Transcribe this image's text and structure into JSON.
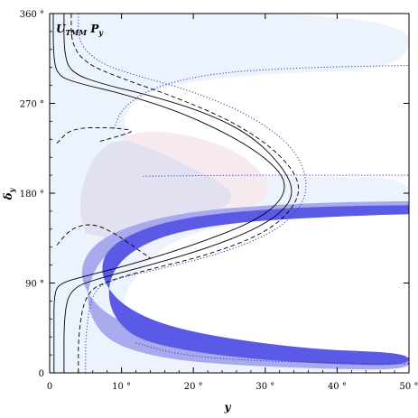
{
  "chart_data": {
    "type": "contour",
    "label": {
      "main": "U",
      "sub": "TMM",
      "tail": " P",
      "tail_sub": "y"
    },
    "xlabel": "y",
    "ylabel": {
      "main": "δ",
      "sub": "y"
    },
    "xlim": [
      0,
      50
    ],
    "ylim": [
      0,
      360
    ],
    "xticks": [
      {
        "value": 0,
        "label": "0"
      },
      {
        "value": 10,
        "label": "10 °"
      },
      {
        "value": 20,
        "label": "20 °"
      },
      {
        "value": 30,
        "label": "30 °"
      },
      {
        "value": 40,
        "label": "40 °"
      },
      {
        "value": 50,
        "label": "50 °"
      }
    ],
    "yticks": [
      {
        "value": 0,
        "label": "0"
      },
      {
        "value": 90,
        "label": "90 °"
      },
      {
        "value": 180,
        "label": "180 °"
      },
      {
        "value": 270,
        "label": "270 °"
      },
      {
        "value": 360,
        "label": "360 °"
      }
    ],
    "colors": {
      "light_blue_fill": "#edf3fc",
      "pink_fill": "#f6eaf0",
      "grey_purple_fill": "#e1e1f2",
      "band_outer": "#a9a9ee",
      "band_inner": "#5a5ae6",
      "line": "#000000",
      "dotted_blue": "#3a3ab0"
    },
    "regions": [
      {
        "name": "outer-3sigma-region",
        "color": "light_blue_fill",
        "points": [
          [
            0,
            0
          ],
          [
            50,
            0
          ],
          [
            50,
            14
          ],
          [
            38,
            15
          ],
          [
            25,
            17
          ],
          [
            15,
            22
          ],
          [
            11,
            35
          ],
          [
            10,
            60
          ],
          [
            11,
            90
          ],
          [
            16,
            130
          ],
          [
            25,
            150
          ],
          [
            38,
            158
          ],
          [
            50,
            162
          ],
          [
            50,
            196
          ],
          [
            38,
            196
          ],
          [
            25,
            198
          ],
          [
            15,
            215
          ],
          [
            10,
            240
          ],
          [
            11,
            270
          ],
          [
            17,
            290
          ],
          [
            30,
            300
          ],
          [
            50,
            304
          ],
          [
            50,
            360
          ],
          [
            0,
            360
          ]
        ]
      },
      {
        "name": "pink-central-region",
        "color": "pink_fill",
        "points": [
          [
            6,
            160
          ],
          [
            7,
            200
          ],
          [
            10,
            237
          ],
          [
            14,
            243
          ],
          [
            20,
            238
          ],
          [
            26,
            222
          ],
          [
            29,
            205
          ],
          [
            31,
            185
          ],
          [
            29,
            168
          ],
          [
            24,
            150
          ],
          [
            17,
            138
          ],
          [
            10,
            140
          ]
        ]
      },
      {
        "name": "grey-overlap-region",
        "color": "grey_purple_fill",
        "points": [
          [
            5,
            140
          ],
          [
            4,
            165
          ],
          [
            5,
            200
          ],
          [
            7,
            225
          ],
          [
            10,
            235
          ],
          [
            14,
            225
          ],
          [
            20,
            205
          ],
          [
            24,
            190
          ],
          [
            26,
            175
          ],
          [
            22,
            155
          ],
          [
            14,
            140
          ],
          [
            8,
            135
          ]
        ]
      },
      {
        "name": "outer-band",
        "color": "band_outer",
        "points": [
          [
            50,
            172
          ],
          [
            40,
            171
          ],
          [
            30,
            168
          ],
          [
            20,
            162
          ],
          [
            12,
            150
          ],
          [
            6,
            130
          ],
          [
            4,
            100
          ],
          [
            6,
            70
          ],
          [
            10,
            50
          ],
          [
            16,
            36
          ],
          [
            25,
            26
          ],
          [
            38,
            18
          ],
          [
            50,
            16
          ],
          [
            50,
            3
          ],
          [
            38,
            4
          ],
          [
            25,
            8
          ],
          [
            16,
            14
          ],
          [
            9,
            28
          ],
          [
            6,
            50
          ],
          [
            5,
            80
          ],
          [
            7,
            115
          ],
          [
            12,
            140
          ],
          [
            20,
            152
          ],
          [
            30,
            158
          ],
          [
            40,
            161
          ],
          [
            50,
            162
          ]
        ]
      },
      {
        "name": "inner-band",
        "color": "band_inner",
        "points": [
          [
            50,
            168
          ],
          [
            40,
            167
          ],
          [
            30,
            164
          ],
          [
            20,
            157
          ],
          [
            13,
            145
          ],
          [
            8,
            125
          ],
          [
            7,
            100
          ],
          [
            9,
            75
          ],
          [
            13,
            56
          ],
          [
            19,
            42
          ],
          [
            28,
            31
          ],
          [
            38,
            23
          ],
          [
            50,
            20
          ],
          [
            50,
            7
          ],
          [
            38,
            9
          ],
          [
            28,
            14
          ],
          [
            19,
            22
          ],
          [
            12,
            34
          ],
          [
            9,
            55
          ],
          [
            8,
            80
          ],
          [
            9,
            105
          ],
          [
            12,
            125
          ],
          [
            17,
            140
          ],
          [
            25,
            150
          ],
          [
            35,
            155
          ],
          [
            45,
            158
          ],
          [
            50,
            159
          ]
        ]
      }
    ],
    "curves": [
      {
        "name": "solid-curve-outer",
        "style": "solid",
        "points": [
          [
            0.5,
            360
          ],
          [
            0.5,
            320
          ],
          [
            1,
            298
          ],
          [
            4,
            290
          ],
          [
            10,
            280
          ],
          [
            18,
            262
          ],
          [
            26,
            235
          ],
          [
            31,
            210
          ],
          [
            33,
            190
          ],
          [
            32,
            170
          ],
          [
            28,
            150
          ],
          [
            20,
            128
          ],
          [
            12,
            110
          ],
          [
            5,
            97
          ],
          [
            1.5,
            90
          ],
          [
            0.6,
            80
          ],
          [
            0.6,
            40
          ],
          [
            0.6,
            0
          ]
        ]
      },
      {
        "name": "solid-curve-inner",
        "style": "solid",
        "points": [
          [
            2,
            360
          ],
          [
            2,
            320
          ],
          [
            3,
            300
          ],
          [
            8,
            288
          ],
          [
            14,
            278
          ],
          [
            22,
            260
          ],
          [
            28,
            238
          ],
          [
            32,
            210
          ],
          [
            34,
            185
          ],
          [
            33,
            165
          ],
          [
            29,
            145
          ],
          [
            22,
            125
          ],
          [
            14,
            108
          ],
          [
            7,
            95
          ],
          [
            3,
            85
          ],
          [
            2,
            60
          ],
          [
            2,
            0
          ]
        ]
      },
      {
        "name": "dashed-curve-outer",
        "style": "dashed",
        "points": [
          [
            3,
            360
          ],
          [
            3,
            330
          ],
          [
            5,
            310
          ],
          [
            10,
            295
          ],
          [
            18,
            275
          ],
          [
            26,
            250
          ],
          [
            32,
            220
          ],
          [
            35,
            190
          ],
          [
            34,
            165
          ],
          [
            30,
            140
          ],
          [
            22,
            118
          ],
          [
            14,
            104
          ],
          [
            8,
            92
          ],
          [
            5,
            80
          ],
          [
            4,
            40
          ],
          [
            4,
            0
          ]
        ]
      },
      {
        "name": "dashed-curve-pocket",
        "style": "dashed",
        "points": [
          [
            1,
            230
          ],
          [
            3,
            245
          ],
          [
            8,
            246
          ],
          [
            12,
            243
          ],
          [
            10,
            238
          ],
          [
            7,
            232
          ]
        ]
      },
      {
        "name": "dashed-curve-lower",
        "style": "dashed",
        "points": [
          [
            1,
            128
          ],
          [
            3,
            145
          ],
          [
            6,
            150
          ],
          [
            9,
            140
          ],
          [
            11,
            130
          ],
          [
            14,
            115
          ]
        ]
      },
      {
        "name": "dotted-curve-upper",
        "style": "dotted",
        "points": [
          [
            9,
            245
          ],
          [
            10,
            265
          ],
          [
            14,
            285
          ],
          [
            22,
            300
          ],
          [
            35,
            306
          ],
          [
            50,
            308
          ]
        ]
      },
      {
        "name": "dotted-curve-mid",
        "style": "dotted",
        "points": [
          [
            13,
            197
          ],
          [
            25,
            198
          ],
          [
            38,
            198
          ],
          [
            50,
            198
          ]
        ]
      },
      {
        "name": "dotted-curve-lower",
        "style": "dotted",
        "points": [
          [
            12,
            30
          ],
          [
            18,
            18
          ],
          [
            28,
            12
          ],
          [
            40,
            10
          ],
          [
            50,
            9
          ]
        ]
      },
      {
        "name": "dotted-curve-inner",
        "style": "dotted",
        "points": [
          [
            4,
            360
          ],
          [
            4,
            330
          ],
          [
            7,
            310
          ],
          [
            12,
            298
          ],
          [
            20,
            282
          ],
          [
            28,
            258
          ],
          [
            34,
            226
          ],
          [
            36,
            192
          ],
          [
            35,
            165
          ],
          [
            31,
            140
          ],
          [
            24,
            120
          ],
          [
            16,
            105
          ],
          [
            10,
            96
          ],
          [
            6,
            85
          ],
          [
            5,
            40
          ],
          [
            5,
            0
          ]
        ]
      }
    ]
  }
}
